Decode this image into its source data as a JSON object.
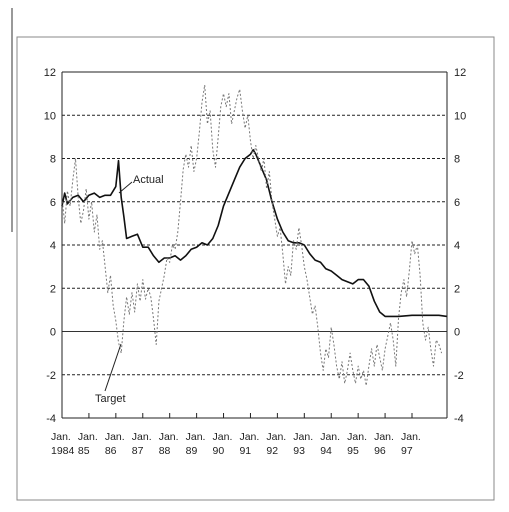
{
  "chart_data": {
    "type": "line",
    "title": "",
    "xlabel": "",
    "ylabel": "",
    "ylim": [
      -4,
      12
    ],
    "yticks": [
      -4,
      -2,
      0,
      2,
      4,
      6,
      8,
      10,
      12
    ],
    "grid": "horizontal dashed at even values, solid zero line",
    "x_tick_labels": [
      {
        "x": 1984,
        "line1": "Jan.",
        "line2": "1984"
      },
      {
        "x": 1985,
        "line1": "Jan.",
        "line2": "85"
      },
      {
        "x": 1986,
        "line1": "Jan.",
        "line2": "86"
      },
      {
        "x": 1987,
        "line1": "Jan.",
        "line2": "87"
      },
      {
        "x": 1988,
        "line1": "Jan.",
        "line2": "88"
      },
      {
        "x": 1989,
        "line1": "Jan.",
        "line2": "89"
      },
      {
        "x": 1990,
        "line1": "Jan.",
        "line2": "90"
      },
      {
        "x": 1991,
        "line1": "Jan.",
        "line2": "91"
      },
      {
        "x": 1992,
        "line1": "Jan.",
        "line2": "92"
      },
      {
        "x": 1993,
        "line1": "Jan.",
        "line2": "93"
      },
      {
        "x": 1994,
        "line1": "Jan.",
        "line2": "94"
      },
      {
        "x": 1995,
        "line1": "Jan.",
        "line2": "95"
      },
      {
        "x": 1996,
        "line1": "Jan.",
        "line2": "96"
      },
      {
        "x": 1997,
        "line1": "Jan.",
        "line2": "97"
      }
    ],
    "series": [
      {
        "name": "Actual",
        "style": "solid",
        "color": "#111111",
        "points": [
          [
            1984.0,
            5.8
          ],
          [
            1984.1,
            6.4
          ],
          [
            1984.2,
            5.9
          ],
          [
            1984.4,
            6.2
          ],
          [
            1984.6,
            6.3
          ],
          [
            1984.8,
            6.0
          ],
          [
            1985.0,
            6.3
          ],
          [
            1985.2,
            6.4
          ],
          [
            1985.4,
            6.2
          ],
          [
            1985.6,
            6.3
          ],
          [
            1985.8,
            6.3
          ],
          [
            1986.0,
            6.7
          ],
          [
            1986.1,
            7.9
          ],
          [
            1986.2,
            6.2
          ],
          [
            1986.3,
            5.3
          ],
          [
            1986.4,
            4.3
          ],
          [
            1986.6,
            4.4
          ],
          [
            1986.8,
            4.5
          ],
          [
            1987.0,
            3.9
          ],
          [
            1987.2,
            3.9
          ],
          [
            1987.4,
            3.5
          ],
          [
            1987.6,
            3.2
          ],
          [
            1987.8,
            3.4
          ],
          [
            1988.0,
            3.4
          ],
          [
            1988.2,
            3.5
          ],
          [
            1988.4,
            3.3
          ],
          [
            1988.6,
            3.5
          ],
          [
            1988.8,
            3.8
          ],
          [
            1989.0,
            3.9
          ],
          [
            1989.2,
            4.1
          ],
          [
            1989.4,
            4.0
          ],
          [
            1989.6,
            4.3
          ],
          [
            1989.8,
            4.9
          ],
          [
            1990.0,
            5.8
          ],
          [
            1990.2,
            6.4
          ],
          [
            1990.4,
            7.0
          ],
          [
            1990.6,
            7.6
          ],
          [
            1990.8,
            8.0
          ],
          [
            1991.0,
            8.2
          ],
          [
            1991.1,
            8.4
          ],
          [
            1991.2,
            8.2
          ],
          [
            1991.4,
            7.6
          ],
          [
            1991.6,
            7.0
          ],
          [
            1991.8,
            6.0
          ],
          [
            1992.0,
            5.2
          ],
          [
            1992.2,
            4.6
          ],
          [
            1992.4,
            4.2
          ],
          [
            1992.6,
            4.1
          ],
          [
            1992.8,
            4.1
          ],
          [
            1993.0,
            4.0
          ],
          [
            1993.2,
            3.6
          ],
          [
            1993.4,
            3.3
          ],
          [
            1993.6,
            3.2
          ],
          [
            1993.8,
            2.9
          ],
          [
            1994.0,
            2.8
          ],
          [
            1994.2,
            2.6
          ],
          [
            1994.4,
            2.4
          ],
          [
            1994.6,
            2.3
          ],
          [
            1994.8,
            2.2
          ],
          [
            1995.0,
            2.4
          ],
          [
            1995.2,
            2.4
          ],
          [
            1995.4,
            2.1
          ],
          [
            1995.6,
            1.4
          ],
          [
            1995.8,
            0.9
          ],
          [
            1996.0,
            0.7
          ],
          [
            1996.5,
            0.7
          ],
          [
            1997.0,
            0.75
          ],
          [
            1997.5,
            0.75
          ],
          [
            1998.0,
            0.75
          ],
          [
            1998.3,
            0.7
          ]
        ]
      },
      {
        "name": "Target",
        "style": "dashed",
        "color": "#777777",
        "points": [
          [
            1984.0,
            6.2
          ],
          [
            1984.1,
            5.0
          ],
          [
            1984.2,
            6.5
          ],
          [
            1984.3,
            5.8
          ],
          [
            1984.4,
            7.0
          ],
          [
            1984.5,
            8.0
          ],
          [
            1984.6,
            6.2
          ],
          [
            1984.7,
            5.0
          ],
          [
            1984.8,
            5.6
          ],
          [
            1984.9,
            6.6
          ],
          [
            1985.0,
            5.2
          ],
          [
            1985.1,
            6.0
          ],
          [
            1985.2,
            4.6
          ],
          [
            1985.3,
            5.4
          ],
          [
            1985.4,
            3.8
          ],
          [
            1985.5,
            4.2
          ],
          [
            1985.6,
            3.0
          ],
          [
            1985.7,
            1.8
          ],
          [
            1985.8,
            2.6
          ],
          [
            1985.9,
            1.2
          ],
          [
            1986.0,
            0.5
          ],
          [
            1986.1,
            -0.5
          ],
          [
            1986.2,
            -1.0
          ],
          [
            1986.3,
            0.5
          ],
          [
            1986.4,
            1.6
          ],
          [
            1986.5,
            0.8
          ],
          [
            1986.6,
            1.8
          ],
          [
            1986.7,
            0.9
          ],
          [
            1986.8,
            2.2
          ],
          [
            1986.9,
            1.4
          ],
          [
            1987.0,
            2.4
          ],
          [
            1987.1,
            1.5
          ],
          [
            1987.2,
            2.0
          ],
          [
            1987.3,
            1.6
          ],
          [
            1987.4,
            0.6
          ],
          [
            1987.5,
            -0.6
          ],
          [
            1987.6,
            1.4
          ],
          [
            1987.7,
            2.0
          ],
          [
            1987.8,
            2.6
          ],
          [
            1987.9,
            3.4
          ],
          [
            1988.0,
            3.2
          ],
          [
            1988.1,
            4.0
          ],
          [
            1988.2,
            3.8
          ],
          [
            1988.3,
            4.6
          ],
          [
            1988.4,
            6.0
          ],
          [
            1988.5,
            7.5
          ],
          [
            1988.6,
            8.2
          ],
          [
            1988.7,
            7.6
          ],
          [
            1988.8,
            8.6
          ],
          [
            1988.9,
            7.4
          ],
          [
            1989.0,
            8.0
          ],
          [
            1989.1,
            9.2
          ],
          [
            1989.2,
            10.6
          ],
          [
            1989.3,
            11.4
          ],
          [
            1989.4,
            9.6
          ],
          [
            1989.5,
            10.2
          ],
          [
            1989.6,
            8.4
          ],
          [
            1989.7,
            7.6
          ],
          [
            1989.8,
            9.0
          ],
          [
            1989.9,
            10.4
          ],
          [
            1990.0,
            11.0
          ],
          [
            1990.1,
            10.4
          ],
          [
            1990.2,
            11.0
          ],
          [
            1990.3,
            9.6
          ],
          [
            1990.4,
            10.2
          ],
          [
            1990.5,
            10.8
          ],
          [
            1990.6,
            11.2
          ],
          [
            1990.7,
            10.2
          ],
          [
            1990.8,
            9.4
          ],
          [
            1990.9,
            10.0
          ],
          [
            1991.0,
            8.8
          ],
          [
            1991.1,
            8.0
          ],
          [
            1991.2,
            8.6
          ],
          [
            1991.3,
            8.0
          ],
          [
            1991.4,
            7.4
          ],
          [
            1991.5,
            8.0
          ],
          [
            1991.6,
            6.6
          ],
          [
            1991.7,
            7.4
          ],
          [
            1991.8,
            6.0
          ],
          [
            1991.9,
            5.2
          ],
          [
            1992.0,
            4.4
          ],
          [
            1992.1,
            4.8
          ],
          [
            1992.2,
            3.6
          ],
          [
            1992.3,
            2.2
          ],
          [
            1992.4,
            3.0
          ],
          [
            1992.5,
            2.6
          ],
          [
            1992.6,
            4.2
          ],
          [
            1992.7,
            3.8
          ],
          [
            1992.8,
            4.8
          ],
          [
            1992.9,
            4.0
          ],
          [
            1993.0,
            3.0
          ],
          [
            1993.1,
            2.4
          ],
          [
            1993.2,
            1.6
          ],
          [
            1993.3,
            0.8
          ],
          [
            1993.4,
            1.2
          ],
          [
            1993.5,
            0.2
          ],
          [
            1993.6,
            -1.0
          ],
          [
            1993.7,
            -1.8
          ],
          [
            1993.8,
            -0.8
          ],
          [
            1993.9,
            -1.2
          ],
          [
            1994.0,
            0.2
          ],
          [
            1994.1,
            -0.6
          ],
          [
            1994.2,
            -1.6
          ],
          [
            1994.3,
            -2.2
          ],
          [
            1994.4,
            -1.4
          ],
          [
            1994.5,
            -2.4
          ],
          [
            1994.6,
            -1.8
          ],
          [
            1994.7,
            -1.0
          ],
          [
            1994.8,
            -1.8
          ],
          [
            1994.9,
            -2.4
          ],
          [
            1995.0,
            -1.6
          ],
          [
            1995.1,
            -2.2
          ],
          [
            1995.2,
            -1.8
          ],
          [
            1995.3,
            -2.5
          ],
          [
            1995.4,
            -1.6
          ],
          [
            1995.5,
            -0.8
          ],
          [
            1995.6,
            -1.6
          ],
          [
            1995.7,
            -0.6
          ],
          [
            1995.8,
            -1.2
          ],
          [
            1995.9,
            -1.8
          ],
          [
            1996.0,
            -0.8
          ],
          [
            1996.1,
            -0.2
          ],
          [
            1996.2,
            0.4
          ],
          [
            1996.3,
            -0.4
          ],
          [
            1996.4,
            -1.6
          ],
          [
            1996.5,
            0.6
          ],
          [
            1996.6,
            1.8
          ],
          [
            1996.7,
            2.4
          ],
          [
            1996.8,
            1.6
          ],
          [
            1996.9,
            2.8
          ],
          [
            1997.0,
            4.2
          ],
          [
            1997.1,
            3.6
          ],
          [
            1997.2,
            4.0
          ],
          [
            1997.3,
            2.6
          ],
          [
            1997.4,
            0.4
          ],
          [
            1997.5,
            -0.4
          ],
          [
            1997.6,
            0.2
          ],
          [
            1997.7,
            -0.8
          ],
          [
            1997.8,
            -1.6
          ],
          [
            1997.9,
            -0.4
          ],
          [
            1998.0,
            -0.6
          ],
          [
            1998.1,
            -1.0
          ]
        ]
      }
    ],
    "annotations": [
      {
        "text": "Actual",
        "series": "Actual"
      },
      {
        "text": "Target",
        "series": "Target"
      }
    ]
  }
}
